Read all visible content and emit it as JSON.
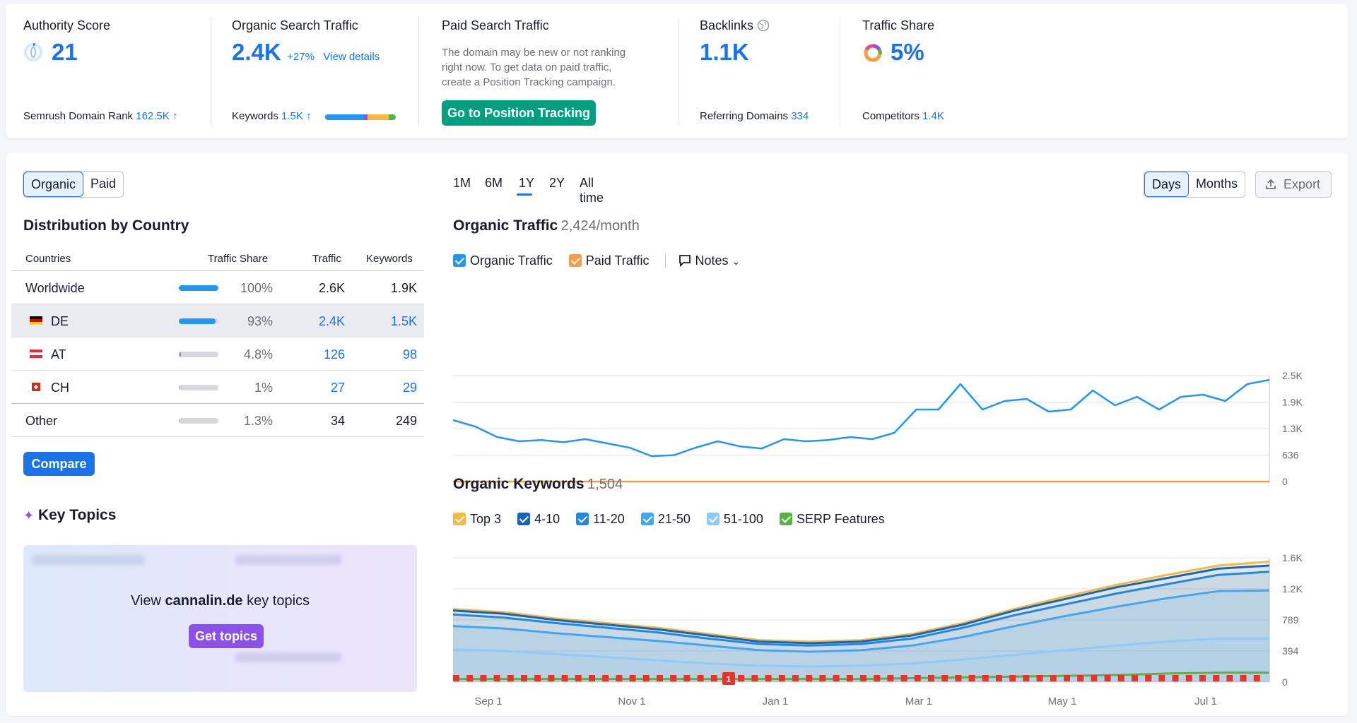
{
  "kpis": {
    "authority": {
      "title": "Authority Score",
      "value": "21",
      "foot_label": "Semrush Domain Rank",
      "foot_value": "162.5K",
      "foot_arrow": "↑"
    },
    "organic": {
      "title": "Organic Search Traffic",
      "value": "2.4K",
      "change": "+27%",
      "link": "View details",
      "foot_label": "Keywords",
      "foot_value": "1.5K",
      "foot_arrow": "↑"
    },
    "paid": {
      "title": "Paid Search Traffic",
      "text_1": "The domain may be new or not ranking",
      "text_2": "right now. To get data on paid traffic,",
      "text_3": "create a Position Tracking campaign.",
      "button": "Go to Position Tracking"
    },
    "backlinks": {
      "title": "Backlinks",
      "value": "1.1K",
      "foot_label": "Referring Domains",
      "foot_value": "334"
    },
    "share": {
      "title": "Traffic Share",
      "value": "5%",
      "foot_label": "Competitors",
      "foot_value": "1.4K"
    }
  },
  "toggle": {
    "organic": "Organic",
    "paid": "Paid"
  },
  "periods": [
    "1M",
    "6M",
    "1Y",
    "2Y",
    "All time"
  ],
  "active_period": "1Y",
  "granularity": {
    "days": "Days",
    "months": "Months"
  },
  "export_label": "Export",
  "distribution": {
    "title": "Distribution by Country",
    "headers": {
      "country": "Countries",
      "share": "Traffic Share",
      "traffic": "Traffic",
      "keywords": "Keywords"
    },
    "rows": [
      {
        "country": "Worldwide",
        "share": "100%",
        "share_fraction": 1.0,
        "traffic": "2.6K",
        "keywords": "1.9K"
      },
      {
        "country": "DE",
        "share": "93%",
        "share_fraction": 0.93,
        "traffic": "2.4K",
        "keywords": "1.5K"
      },
      {
        "country": "AT",
        "share": "4.8%",
        "share_fraction": 0.048,
        "traffic": "126",
        "keywords": "98"
      },
      {
        "country": "CH",
        "share": "1%",
        "share_fraction": 0.01,
        "traffic": "27",
        "keywords": "29"
      },
      {
        "country": "Other",
        "share": "1.3%",
        "share_fraction": 0.013,
        "traffic": "34",
        "keywords": "249"
      }
    ],
    "compare_button": "Compare"
  },
  "key_topics": {
    "title": "Key Topics",
    "view_prefix": "View ",
    "domain": "cannalin.de",
    "view_suffix": " key topics",
    "button": "Get topics"
  },
  "organic_traffic": {
    "title": "Organic Traffic",
    "subtitle": "2,424/month",
    "legend": {
      "organic": "Organic Traffic",
      "paid": "Paid Traffic",
      "notes": "Notes"
    }
  },
  "organic_keywords": {
    "title": "Organic Keywords",
    "subtitle": "1,504",
    "legend": {
      "top3": "Top 3",
      "r4_10": "4-10",
      "r11_20": "11-20",
      "r21_50": "21-50",
      "r51_100": "51-100",
      "serp": "SERP Features"
    },
    "note_marker": "1"
  },
  "colors": {
    "organic": "#2196f3",
    "paid": "#f79b45",
    "top3": "#f5b942",
    "r4_10": "#1565c0",
    "r11_20": "#1e88e5",
    "r21_50": "#42a5f5",
    "r51_100": "#90caf9",
    "serp": "#58b246"
  },
  "chart_data": [
    {
      "type": "line",
      "title": "Organic Traffic",
      "x_tick_labels": [
        "Sep 1",
        "Nov 1",
        "Jan 1",
        "Mar 1",
        "May 1",
        "Jul 1"
      ],
      "y_tick_labels": [
        "0",
        "636",
        "1.3K",
        "1.9K",
        "2.5K"
      ],
      "ylim": [
        0,
        2500
      ],
      "grid": true,
      "series": [
        {
          "name": "Organic Traffic",
          "values": [
            1450,
            1300,
            1050,
            950,
            980,
            930,
            1000,
            900,
            800,
            600,
            620,
            800,
            950,
            830,
            780,
            1000,
            950,
            980,
            1050,
            1000,
            1150,
            1700,
            1700,
            2300,
            1700,
            1900,
            1950,
            1650,
            1700,
            2150,
            1800,
            2000,
            1700,
            2000,
            2050,
            1900,
            2300,
            2400
          ]
        },
        {
          "name": "Paid Traffic",
          "values": [
            0,
            0,
            0,
            0,
            0,
            0,
            0,
            0,
            0,
            0,
            0,
            0,
            0,
            0,
            0,
            0,
            0,
            0,
            0,
            0,
            0,
            0,
            0,
            0,
            0,
            0,
            0,
            0,
            0,
            0,
            0,
            0,
            0,
            0,
            0,
            0,
            0,
            0
          ]
        }
      ]
    },
    {
      "type": "area",
      "title": "Organic Keywords",
      "x_tick_labels": [
        "Sep 1",
        "Nov 1",
        "Jan 1",
        "Mar 1",
        "May 1",
        "Jul 1"
      ],
      "y_tick_labels": [
        "0",
        "394",
        "789",
        "1.2K",
        "1.6K"
      ],
      "ylim": [
        0,
        1600
      ],
      "grid": true,
      "series": [
        {
          "name": "Top 3",
          "values": [
            940,
            900,
            820,
            760,
            700,
            620,
            540,
            520,
            540,
            620,
            760,
            940,
            1100,
            1250,
            1380,
            1500,
            1550
          ]
        },
        {
          "name": "4-10",
          "values": [
            920,
            880,
            800,
            740,
            680,
            600,
            520,
            500,
            520,
            600,
            740,
            920,
            1070,
            1220,
            1340,
            1460,
            1500
          ]
        },
        {
          "name": "11-20",
          "values": [
            870,
            830,
            760,
            700,
            640,
            560,
            490,
            470,
            490,
            560,
            700,
            860,
            1000,
            1140,
            1260,
            1380,
            1420
          ]
        },
        {
          "name": "21-50",
          "values": [
            720,
            690,
            630,
            580,
            530,
            470,
            410,
            390,
            410,
            470,
            580,
            720,
            850,
            970,
            1080,
            1170,
            1180
          ]
        },
        {
          "name": "51-100",
          "values": [
            420,
            400,
            360,
            320,
            280,
            240,
            210,
            200,
            210,
            240,
            290,
            350,
            410,
            470,
            520,
            560,
            560
          ]
        },
        {
          "name": "SERP Features",
          "values": [
            40,
            40,
            40,
            40,
            40,
            40,
            40,
            40,
            40,
            50,
            60,
            70,
            80,
            90,
            110,
            120,
            120
          ]
        }
      ]
    }
  ]
}
